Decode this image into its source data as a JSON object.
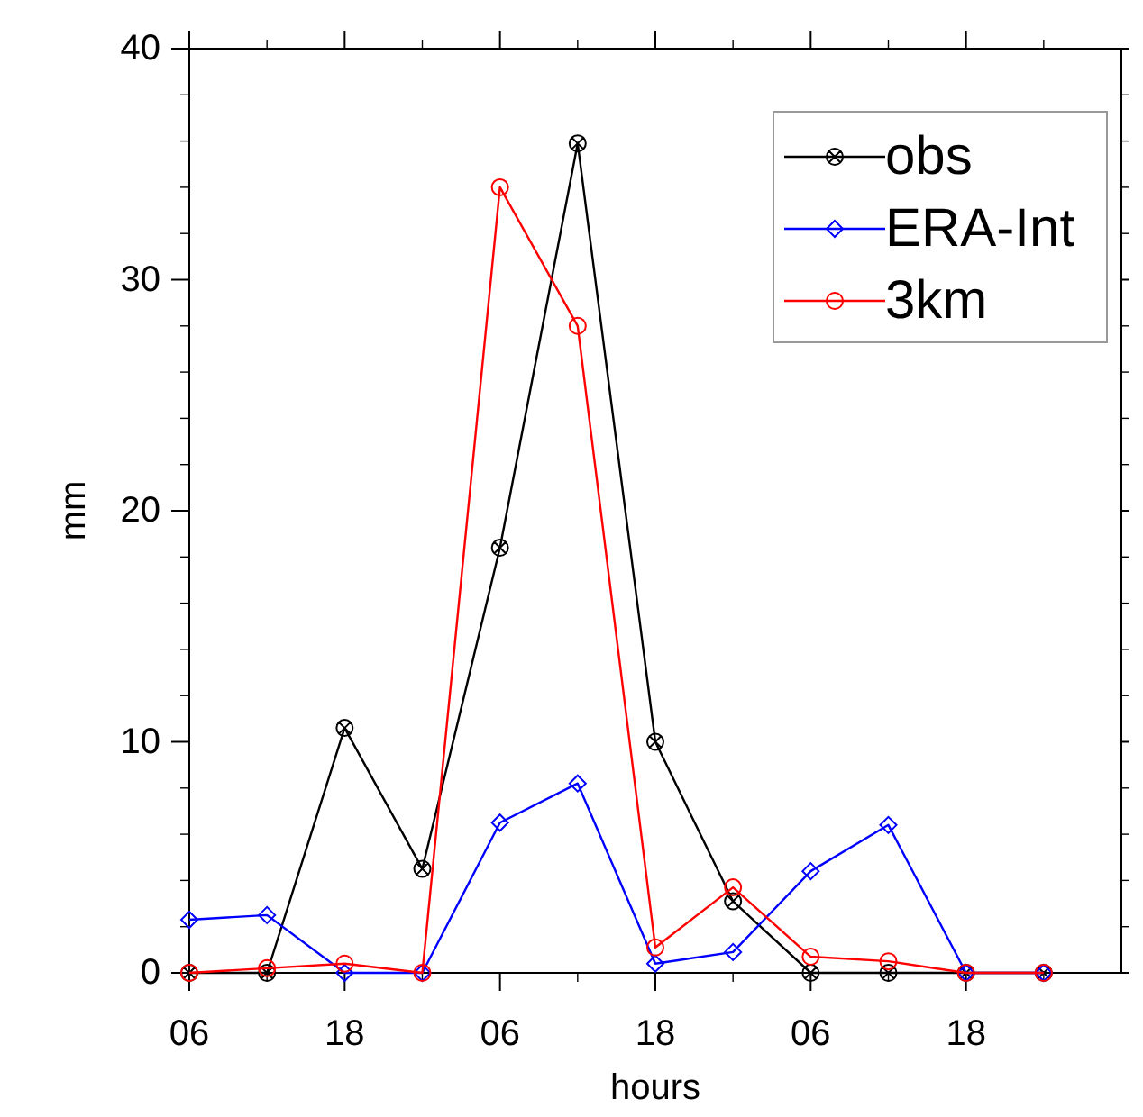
{
  "chart_data": {
    "type": "line",
    "xlabel": "hours",
    "ylabel": "mm",
    "categories": [
      "06",
      null,
      "18",
      null,
      "06",
      null,
      "18",
      null,
      "06",
      null,
      "18",
      null
    ],
    "ylim": [
      0,
      40
    ],
    "yticks": [
      0,
      10,
      20,
      30,
      40
    ],
    "grid": false,
    "legend": "top right",
    "line_style": "solid",
    "series": [
      {
        "name": "obs",
        "color": "#000000",
        "marker": "cross",
        "values": [
          0,
          0,
          10.6,
          4.5,
          18.4,
          35.9,
          10,
          3.1,
          0,
          0,
          0,
          0
        ]
      },
      {
        "name": "ERA-Int",
        "color": "#0000ff",
        "marker": "diamond",
        "values": [
          2.3,
          2.5,
          0,
          0,
          6.5,
          8.2,
          0.4,
          0.9,
          4.4,
          6.4,
          0,
          0
        ]
      },
      {
        "name": "3km",
        "color": "#ff0000",
        "marker": "circle",
        "values": [
          0,
          0.2,
          0.4,
          0,
          34,
          28,
          1.1,
          3.7,
          0.7,
          0.5,
          0,
          0
        ]
      }
    ]
  }
}
